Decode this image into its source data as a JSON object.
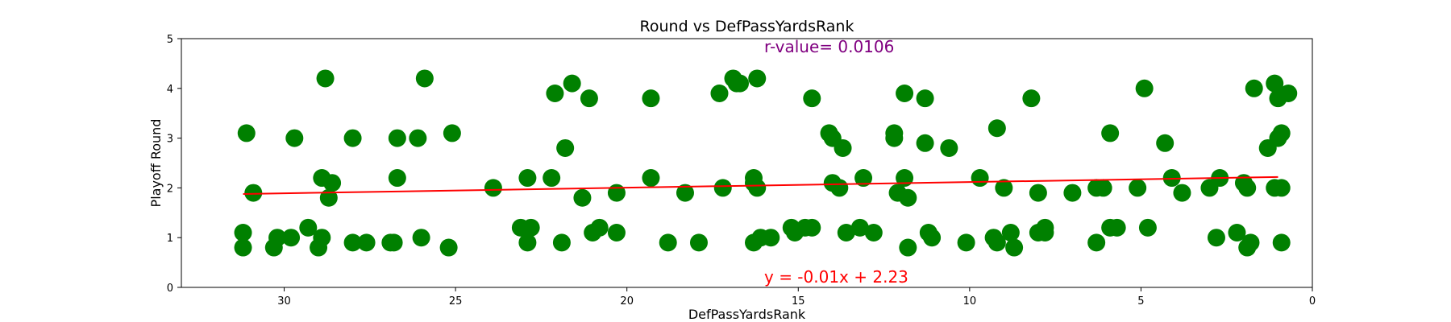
{
  "chart_data": {
    "type": "scatter",
    "title": "Round vs DefPassYardsRank",
    "xlabel": "DefPassYardsRank",
    "ylabel": "Playoff Round",
    "xlim": [
      33,
      0
    ],
    "ylim": [
      0,
      5
    ],
    "x_ticks": [
      30,
      25,
      20,
      15,
      10,
      5,
      0
    ],
    "y_ticks": [
      0,
      1,
      2,
      3,
      4,
      5
    ],
    "grid": false,
    "point_color": "#008000",
    "regression": {
      "equation_text": "y = -0.01x + 2.23",
      "r_value_text": "r-value= 0.0106",
      "slope": -0.0113,
      "intercept": 2.23,
      "x_range": [
        31.2,
        1.0
      ],
      "color": "#ff0000"
    },
    "r_value_color": "#800080",
    "points": [
      [
        31.2,
        1.1
      ],
      [
        31.2,
        0.8
      ],
      [
        31.1,
        3.1
      ],
      [
        30.9,
        1.9
      ],
      [
        30.3,
        0.8
      ],
      [
        30.2,
        1.0
      ],
      [
        29.8,
        1.0
      ],
      [
        29.7,
        3.0
      ],
      [
        29.3,
        1.2
      ],
      [
        29.0,
        0.8
      ],
      [
        28.9,
        1.0
      ],
      [
        28.9,
        2.2
      ],
      [
        28.8,
        4.2
      ],
      [
        28.7,
        1.8
      ],
      [
        28.6,
        2.1
      ],
      [
        28.0,
        3.0
      ],
      [
        28.0,
        0.9
      ],
      [
        27.6,
        0.9
      ],
      [
        26.9,
        0.9
      ],
      [
        26.8,
        0.9
      ],
      [
        26.7,
        3.0
      ],
      [
        26.7,
        2.2
      ],
      [
        26.1,
        3.0
      ],
      [
        26.0,
        1.0
      ],
      [
        25.9,
        4.2
      ],
      [
        25.2,
        0.8
      ],
      [
        25.1,
        3.1
      ],
      [
        23.9,
        2.0
      ],
      [
        23.1,
        1.2
      ],
      [
        22.9,
        2.2
      ],
      [
        22.9,
        0.9
      ],
      [
        22.8,
        1.2
      ],
      [
        22.2,
        2.2
      ],
      [
        22.1,
        3.9
      ],
      [
        21.9,
        0.9
      ],
      [
        21.8,
        2.8
      ],
      [
        21.6,
        4.1
      ],
      [
        21.3,
        1.8
      ],
      [
        21.1,
        3.8
      ],
      [
        21.0,
        1.1
      ],
      [
        20.8,
        1.2
      ],
      [
        20.3,
        1.9
      ],
      [
        20.3,
        1.1
      ],
      [
        19.3,
        3.8
      ],
      [
        19.3,
        2.2
      ],
      [
        18.8,
        0.9
      ],
      [
        18.3,
        1.9
      ],
      [
        17.9,
        0.9
      ],
      [
        17.3,
        3.9
      ],
      [
        17.2,
        2.0
      ],
      [
        16.9,
        4.2
      ],
      [
        16.8,
        4.1
      ],
      [
        16.7,
        4.1
      ],
      [
        16.3,
        0.9
      ],
      [
        16.3,
        2.2
      ],
      [
        16.3,
        2.1
      ],
      [
        16.2,
        4.2
      ],
      [
        16.2,
        2.0
      ],
      [
        16.1,
        1.0
      ],
      [
        15.8,
        1.0
      ],
      [
        15.2,
        1.2
      ],
      [
        15.1,
        1.1
      ],
      [
        14.8,
        1.2
      ],
      [
        14.6,
        1.2
      ],
      [
        14.6,
        3.8
      ],
      [
        14.1,
        3.1
      ],
      [
        14.0,
        2.1
      ],
      [
        14.0,
        3.0
      ],
      [
        13.8,
        2.0
      ],
      [
        13.7,
        2.8
      ],
      [
        13.6,
        1.1
      ],
      [
        13.2,
        1.2
      ],
      [
        13.1,
        2.2
      ],
      [
        12.8,
        1.1
      ],
      [
        12.2,
        3.1
      ],
      [
        12.2,
        3.0
      ],
      [
        12.1,
        1.9
      ],
      [
        11.9,
        3.9
      ],
      [
        11.9,
        2.2
      ],
      [
        11.8,
        0.8
      ],
      [
        11.8,
        1.8
      ],
      [
        11.3,
        3.8
      ],
      [
        11.3,
        2.9
      ],
      [
        11.2,
        1.1
      ],
      [
        11.1,
        1.0
      ],
      [
        10.6,
        2.8
      ],
      [
        10.1,
        0.9
      ],
      [
        9.7,
        2.2
      ],
      [
        9.3,
        1.0
      ],
      [
        9.2,
        3.2
      ],
      [
        9.2,
        0.9
      ],
      [
        9.0,
        2.0
      ],
      [
        8.8,
        1.1
      ],
      [
        8.7,
        0.8
      ],
      [
        8.2,
        3.8
      ],
      [
        8.0,
        1.1
      ],
      [
        8.0,
        1.9
      ],
      [
        7.8,
        1.1
      ],
      [
        7.8,
        1.2
      ],
      [
        7.0,
        1.9
      ],
      [
        6.3,
        0.9
      ],
      [
        6.3,
        2.0
      ],
      [
        6.1,
        2.0
      ],
      [
        5.9,
        1.2
      ],
      [
        5.9,
        3.1
      ],
      [
        5.7,
        1.2
      ],
      [
        5.1,
        2.0
      ],
      [
        4.9,
        4.0
      ],
      [
        4.8,
        1.2
      ],
      [
        4.3,
        2.9
      ],
      [
        4.1,
        2.2
      ],
      [
        3.8,
        1.9
      ],
      [
        3.0,
        2.0
      ],
      [
        2.8,
        1.0
      ],
      [
        2.7,
        2.2
      ],
      [
        2.2,
        1.1
      ],
      [
        2.0,
        2.1
      ],
      [
        1.9,
        2.0
      ],
      [
        1.9,
        0.8
      ],
      [
        1.8,
        0.9
      ],
      [
        1.7,
        4.0
      ],
      [
        1.3,
        2.8
      ],
      [
        1.1,
        2.0
      ],
      [
        1.1,
        4.1
      ],
      [
        1.0,
        3.0
      ],
      [
        1.0,
        3.8
      ],
      [
        0.9,
        3.1
      ],
      [
        0.9,
        2.0
      ],
      [
        0.9,
        0.9
      ],
      [
        0.7,
        3.9
      ]
    ]
  }
}
